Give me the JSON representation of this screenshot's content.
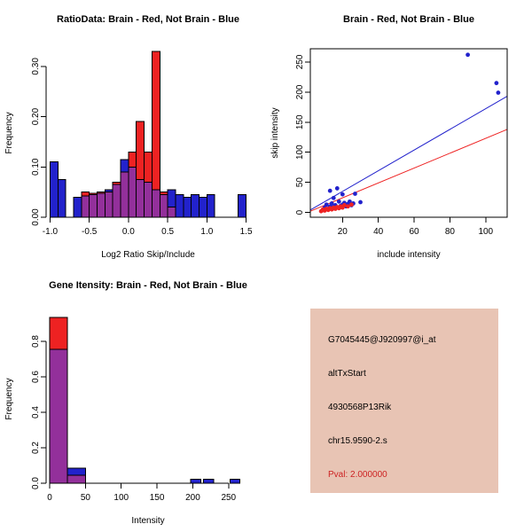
{
  "chart_data": [
    {
      "id": "ratio_hist",
      "type": "bar",
      "subtype": "overlaid-histogram",
      "title": "RatioData: Brain - Red, Not Brain - Blue",
      "xlabel": "Log2 Ratio Skip/Include",
      "ylabel": "Frequency",
      "size": [
        300,
        300
      ],
      "margins": {
        "l": 52,
        "r": 18,
        "t": 55,
        "b": 55
      },
      "xlim": [
        -1.05,
        1.55
      ],
      "ylim": [
        0,
        0.335
      ],
      "frame": "axes",
      "grid": false,
      "xticks": {
        "values": [
          -1.0,
          -0.5,
          0.0,
          0.5,
          1.0,
          1.5
        ],
        "labels": [
          "-1.0",
          "-0.5",
          "0.0",
          "0.5",
          "1.0",
          "1.5"
        ]
      },
      "yticks": {
        "values": [
          0.0,
          0.1,
          0.2,
          0.3
        ],
        "labels": [
          "0.00",
          "0.10",
          "0.20",
          "0.30"
        ]
      },
      "overlap_color": "#93309B",
      "bar_series": [
        {
          "name": "Not Brain",
          "color": "#2222CC",
          "bins": [
            [
              -1.0,
              0.1,
              0.11
            ],
            [
              -0.9,
              0.1,
              0.075
            ],
            [
              -0.7,
              0.1,
              0.04
            ],
            [
              -0.6,
              0.1,
              0.042
            ],
            [
              -0.5,
              0.1,
              0.045
            ],
            [
              -0.4,
              0.1,
              0.048
            ],
            [
              -0.3,
              0.1,
              0.055
            ],
            [
              -0.2,
              0.1,
              0.065
            ],
            [
              -0.1,
              0.1,
              0.115
            ],
            [
              0.0,
              0.1,
              0.1
            ],
            [
              0.1,
              0.1,
              0.075
            ],
            [
              0.2,
              0.1,
              0.07
            ],
            [
              0.3,
              0.1,
              0.055
            ],
            [
              0.4,
              0.1,
              0.045
            ],
            [
              0.5,
              0.1,
              0.055
            ],
            [
              0.6,
              0.1,
              0.045
            ],
            [
              0.7,
              0.1,
              0.04
            ],
            [
              0.8,
              0.1,
              0.045
            ],
            [
              0.9,
              0.1,
              0.04
            ],
            [
              1.0,
              0.1,
              0.045
            ],
            [
              1.4,
              0.1,
              0.045
            ]
          ]
        },
        {
          "name": "Brain",
          "color": "#EE2222",
          "bins": [
            [
              -0.6,
              0.1,
              0.05
            ],
            [
              -0.5,
              0.1,
              0.048
            ],
            [
              -0.4,
              0.1,
              0.05
            ],
            [
              -0.3,
              0.1,
              0.05
            ],
            [
              -0.2,
              0.1,
              0.07
            ],
            [
              -0.1,
              0.1,
              0.09
            ],
            [
              0.0,
              0.1,
              0.13
            ],
            [
              0.1,
              0.1,
              0.19
            ],
            [
              0.2,
              0.1,
              0.13
            ],
            [
              0.3,
              0.1,
              0.33
            ],
            [
              0.4,
              0.1,
              0.05
            ],
            [
              0.5,
              0.1,
              0.02
            ]
          ]
        }
      ]
    },
    {
      "id": "intensity_scatter",
      "type": "scatter",
      "title": "Brain - Red, Not Brain - Blue",
      "xlabel": "include intensity",
      "ylabel": "skip intensity",
      "size": [
        300,
        300
      ],
      "margins": {
        "l": 50,
        "r": 28,
        "t": 55,
        "b": 55
      },
      "xlim": [
        2,
        112
      ],
      "ylim": [
        -8,
        272
      ],
      "frame": "box",
      "grid": false,
      "xticks": {
        "values": [
          20,
          40,
          60,
          80,
          100
        ],
        "labels": [
          "20",
          "40",
          "60",
          "80",
          "100"
        ]
      },
      "yticks": {
        "values": [
          0,
          50,
          100,
          150,
          200,
          250
        ],
        "labels": [
          "0",
          "50",
          "100",
          "150",
          "200",
          "250"
        ]
      },
      "lines": [
        {
          "name": "not-brain-fit",
          "color": "#2222CC",
          "x": [
            2,
            112
          ],
          "y": [
            4,
            193
          ]
        },
        {
          "name": "brain-fit",
          "color": "#EE2222",
          "x": [
            2,
            112
          ],
          "y": [
            2,
            138
          ]
        }
      ],
      "point_series": [
        {
          "name": "Not Brain",
          "color": "#2222CC",
          "points": [
            [
              9,
              4
            ],
            [
              10,
              8
            ],
            [
              11,
              13
            ],
            [
              12,
              6
            ],
            [
              13,
              10
            ],
            [
              13,
              36
            ],
            [
              14,
              15
            ],
            [
              15,
              9
            ],
            [
              15,
              24
            ],
            [
              16,
              12
            ],
            [
              17,
              40
            ],
            [
              18,
              18
            ],
            [
              19,
              11
            ],
            [
              20,
              13
            ],
            [
              20,
              30
            ],
            [
              21,
              16
            ],
            [
              22,
              10
            ],
            [
              23,
              14
            ],
            [
              24,
              18
            ],
            [
              25,
              12
            ],
            [
              26,
              15
            ],
            [
              27,
              31
            ],
            [
              30,
              17
            ],
            [
              90,
              262
            ],
            [
              106,
              215
            ],
            [
              107,
              199
            ]
          ]
        },
        {
          "name": "Brain",
          "color": "#EE2222",
          "points": [
            [
              8,
              2
            ],
            [
              9,
              5
            ],
            [
              10,
              3
            ],
            [
              11,
              6
            ],
            [
              12,
              4
            ],
            [
              13,
              7
            ],
            [
              14,
              5
            ],
            [
              15,
              8
            ],
            [
              16,
              6
            ],
            [
              17,
              9
            ],
            [
              18,
              7
            ],
            [
              19,
              10
            ],
            [
              20,
              8
            ],
            [
              21,
              12
            ],
            [
              23,
              10
            ],
            [
              25,
              13
            ]
          ]
        }
      ]
    },
    {
      "id": "gene_intensity_hist",
      "type": "bar",
      "subtype": "overlaid-histogram",
      "title": "Gene Itensity: Brain - Red, Not Brain - Blue",
      "xlabel": "Intensity",
      "ylabel": "Frequency",
      "size": [
        300,
        300
      ],
      "margins": {
        "l": 52,
        "r": 18,
        "t": 55,
        "b": 55
      },
      "xlim": [
        -5,
        280
      ],
      "ylim": [
        0,
        0.95
      ],
      "frame": "axes",
      "grid": false,
      "xticks": {
        "values": [
          0,
          50,
          100,
          150,
          200,
          250
        ],
        "labels": [
          "0",
          "50",
          "100",
          "150",
          "200",
          "250"
        ]
      },
      "yticks": {
        "values": [
          0.0,
          0.2,
          0.4,
          0.6,
          0.8
        ],
        "labels": [
          "0.0",
          "0.2",
          "0.4",
          "0.6",
          "0.8"
        ]
      },
      "overlap_color": "#93309B",
      "bar_series": [
        {
          "name": "Not Brain",
          "color": "#2222CC",
          "bins": [
            [
              0,
              25,
              0.755
            ],
            [
              25,
              25,
              0.085
            ],
            [
              197,
              14,
              0.022
            ],
            [
              215,
              14,
              0.022
            ],
            [
              252,
              14,
              0.022
            ]
          ]
        },
        {
          "name": "Brain",
          "color": "#EE2222",
          "bins": [
            [
              0,
              25,
              0.935
            ],
            [
              25,
              25,
              0.045
            ]
          ]
        }
      ]
    }
  ],
  "info_panel": {
    "bg_color": "#E8C4B4",
    "lines": [
      {
        "text": "G7045445@J920997@i_at",
        "color": "#000000"
      },
      {
        "text": "altTxStart",
        "color": "#000000"
      },
      {
        "text": "4930568P13Rik",
        "color": "#000000"
      },
      {
        "text": "chr15.9590-2.s",
        "color": "#000000"
      },
      {
        "text": "Pval: 2.000000",
        "color": "#CC2222"
      }
    ]
  }
}
